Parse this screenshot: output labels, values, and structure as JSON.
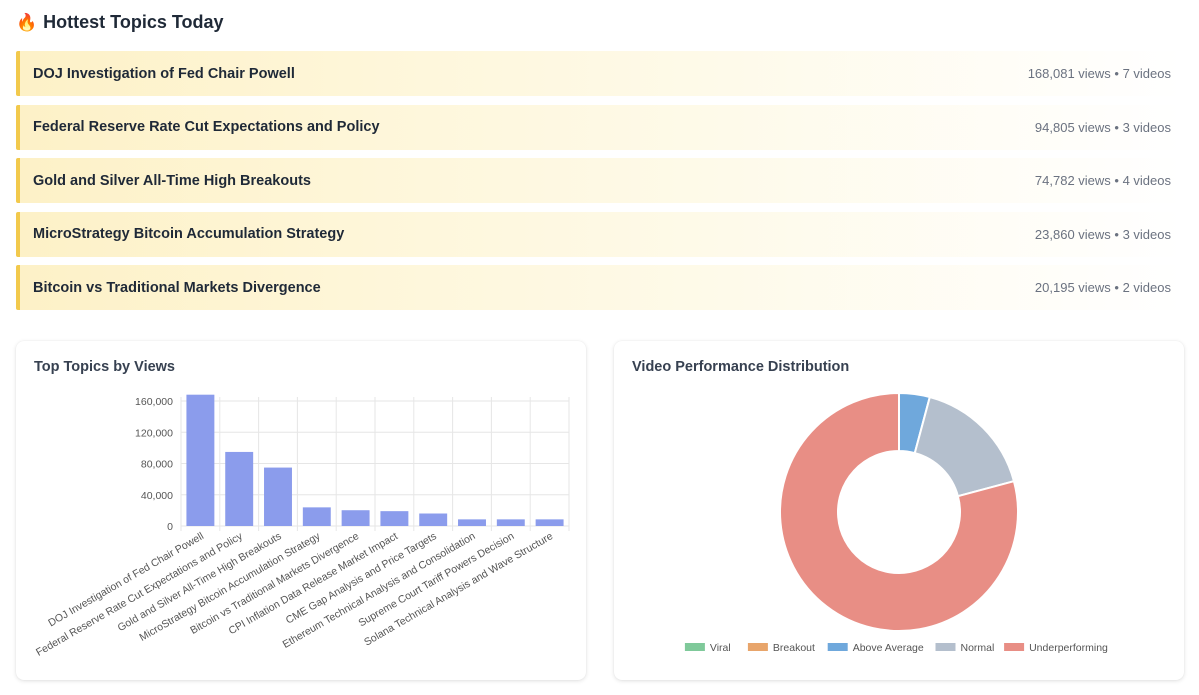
{
  "header": {
    "icon": "fire-icon",
    "emoji": "🔥",
    "title": "Hottest Topics Today"
  },
  "topics": [
    {
      "name": "DOJ Investigation of Fed Chair Powell",
      "meta": "168,081 views • 7 videos"
    },
    {
      "name": "Federal Reserve Rate Cut Expectations and Policy",
      "meta": "94,805 views • 3 videos"
    },
    {
      "name": "Gold and Silver All-Time High Breakouts",
      "meta": "74,782 views • 4 videos"
    },
    {
      "name": "MicroStrategy Bitcoin Accumulation Strategy",
      "meta": "23,860 views • 3 videos"
    },
    {
      "name": "Bitcoin vs Traditional Markets Divergence",
      "meta": "20,195 views • 2 videos"
    }
  ],
  "bar_card": {
    "title": "Top Topics by Views"
  },
  "donut_card": {
    "title": "Video Performance Distribution"
  },
  "colors": {
    "accent": "#f2c94c",
    "bar": "#8b9cec",
    "viral": "#7fc99a",
    "breakout": "#e8a56b",
    "above_average": "#6fa8dc",
    "normal": "#b4bfcd",
    "underperforming": "#e88e85"
  },
  "chart_data": [
    {
      "type": "bar",
      "title": "Top Topics by Views",
      "categories": [
        "DOJ Investigation of Fed Chair Powell",
        "Federal Reserve Rate Cut Expectations and Policy",
        "Gold and Silver All-Time High Breakouts",
        "MicroStrategy Bitcoin Accumulation Strategy",
        "Bitcoin vs Traditional Markets Divergence",
        "CPI Inflation Data Release Market Impact",
        "CME Gap Analysis and Price Targets",
        "Ethereum Technical Analysis and Consolidation",
        "Supreme Court Tariff Powers Decision",
        "Solana Technical Analysis and Wave Structure"
      ],
      "values": [
        168081,
        94805,
        74782,
        23860,
        20195,
        19000,
        16000,
        8500,
        8500,
        8500
      ],
      "yticks": [
        "0",
        "40,000",
        "80,000",
        "120,000",
        "160,000"
      ],
      "ylim": [
        0,
        160000
      ],
      "grid": true,
      "xlabel": "",
      "ylabel": ""
    },
    {
      "type": "pie",
      "title": "Video Performance Distribution",
      "donut": true,
      "labels": [
        "Viral",
        "Breakout",
        "Above Average",
        "Normal",
        "Underperforming"
      ],
      "values": [
        0,
        0,
        1,
        4,
        19
      ],
      "legend": "bottom"
    }
  ]
}
